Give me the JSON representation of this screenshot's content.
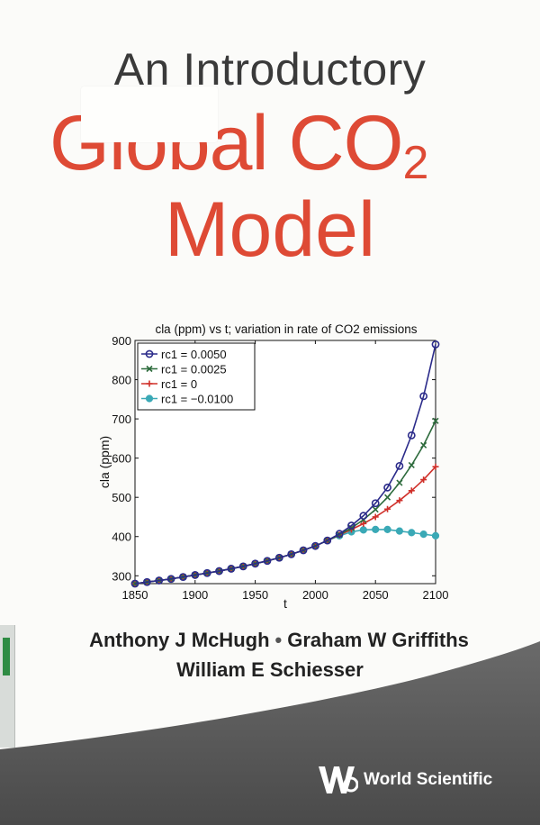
{
  "title": {
    "line1": "An Introductory",
    "line2_main": "Global CO",
    "line2_subscript": "2",
    "line3": "Model"
  },
  "authors": [
    "Anthony J McHugh",
    "Graham W Griffiths",
    "William E Schiesser"
  ],
  "authors_separator": "•",
  "publisher": "World Scientific",
  "colors": {
    "title_red": "#de4a35",
    "band_gray": "#555555"
  },
  "chart_data": {
    "type": "line",
    "title": "cla (ppm) vs t; variation in rate of CO2 emissions",
    "xlabel": "t",
    "ylabel": "cla (ppm)",
    "xlim": [
      1850,
      2100
    ],
    "ylim": [
      280,
      900
    ],
    "xticks": [
      1850,
      1900,
      1950,
      2000,
      2050,
      2100
    ],
    "yticks": [
      300,
      400,
      500,
      600,
      700,
      800,
      900
    ],
    "grid": false,
    "legend_position": "top-left",
    "x": [
      1850,
      1860,
      1870,
      1880,
      1890,
      1900,
      1910,
      1920,
      1930,
      1940,
      1950,
      1960,
      1970,
      1980,
      1990,
      2000,
      2010,
      2020,
      2030,
      2040,
      2050,
      2060,
      2070,
      2080,
      2090,
      2100
    ],
    "series": [
      {
        "name": "rc1 = 0.0050",
        "color": "#2b2b8a",
        "marker": "circle-open",
        "values": [
          280,
          284,
          288,
          292,
          297,
          302,
          307,
          312,
          318,
          324,
          331,
          338,
          346,
          355,
          365,
          376,
          390,
          407,
          428,
          453,
          485,
          525,
          580,
          658,
          758,
          890
        ]
      },
      {
        "name": "rc1 = 0.0025",
        "color": "#2d6b3c",
        "marker": "x",
        "values": [
          280,
          284,
          288,
          292,
          297,
          302,
          307,
          312,
          318,
          324,
          331,
          338,
          346,
          355,
          365,
          376,
          390,
          405,
          422,
          443,
          469,
          500,
          537,
          582,
          633,
          695
        ]
      },
      {
        "name": "rc1 = 0",
        "color": "#d0302a",
        "marker": "plus",
        "values": [
          280,
          284,
          288,
          292,
          297,
          302,
          307,
          312,
          318,
          324,
          331,
          338,
          346,
          355,
          365,
          376,
          390,
          404,
          418,
          433,
          450,
          470,
          492,
          517,
          545,
          578
        ]
      },
      {
        "name": "rc1 = −0.0100",
        "color": "#3aa9b6",
        "marker": "circle-filled",
        "values": [
          280,
          284,
          288,
          292,
          297,
          302,
          307,
          312,
          318,
          324,
          331,
          338,
          346,
          355,
          365,
          376,
          390,
          402,
          412,
          417,
          418,
          418,
          414,
          410,
          406,
          402
        ]
      }
    ]
  }
}
